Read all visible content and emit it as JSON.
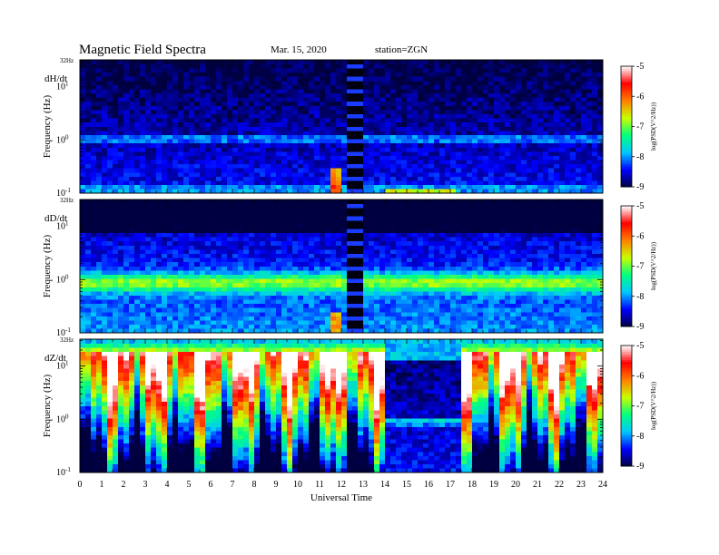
{
  "header": {
    "title": "Magnetic  Field  Spectra",
    "date": "Mar. 15, 2020",
    "station": "station=ZGN"
  },
  "colorbar": {
    "label": "log(PSD(V^2/Hz))",
    "ticks": [
      "-5",
      "-6",
      "-7",
      "-8",
      "-9"
    ],
    "colors": [
      "#000040",
      "#0000ff",
      "#00c8ff",
      "#00ff80",
      "#c8ff00",
      "#ff8000",
      "#ff0000",
      "#ffffff"
    ]
  },
  "chart_data": [
    {
      "type": "heatmap",
      "name": "dH/dt",
      "ylabel": "Frequency  (Hz)",
      "xlabel": "",
      "top_label": "32Hz",
      "y_tick_labels": [
        "10^1",
        "10^0",
        "10^-1"
      ],
      "y_scale": "log",
      "ylim": [
        0.1,
        32
      ],
      "xlim": [
        0,
        24
      ],
      "zlim": [
        -9,
        -5
      ],
      "features": "broadband background about -8.5; persistent line near 1 Hz; data gap 12.2-13.0 UT; enhancement about 11.7-12.0 UT below 0.3 Hz"
    },
    {
      "type": "heatmap",
      "name": "dD/dt",
      "ylabel": "Frequency  (Hz)",
      "xlabel": "",
      "top_label": "32Hz",
      "y_tick_labels": [
        "10^1",
        "10^0",
        "10^-1"
      ],
      "y_scale": "log",
      "ylim": [
        0.1,
        32
      ],
      "xlim": [
        0,
        24
      ],
      "zlim": [
        -9,
        -5
      ],
      "features": "band of about -7 near 0.8-1.5 Hz; data gap 12.2-13.0 UT"
    },
    {
      "type": "heatmap",
      "name": "dZ/dt",
      "ylabel": "Frequency  (Hz)",
      "xlabel": "Universal Time",
      "top_label": "32Hz",
      "y_tick_labels": [
        "10^1",
        "10^0",
        "10^-1"
      ],
      "y_scale": "log",
      "ylim": [
        0.1,
        32
      ],
      "xlim": [
        0,
        24
      ],
      "zlim": [
        -9,
        -5
      ],
      "features": "saturated (above -5) over most frequencies; quieter interval 14.0-17.6 UT with line near 1 Hz"
    }
  ],
  "x_ticks": [
    "0",
    "1",
    "2",
    "3",
    "4",
    "5",
    "6",
    "7",
    "8",
    "9",
    "10",
    "11",
    "12",
    "13",
    "14",
    "15",
    "16",
    "17",
    "18",
    "19",
    "20",
    "21",
    "22",
    "23",
    "24"
  ],
  "x_axis_label": "Universal Time"
}
